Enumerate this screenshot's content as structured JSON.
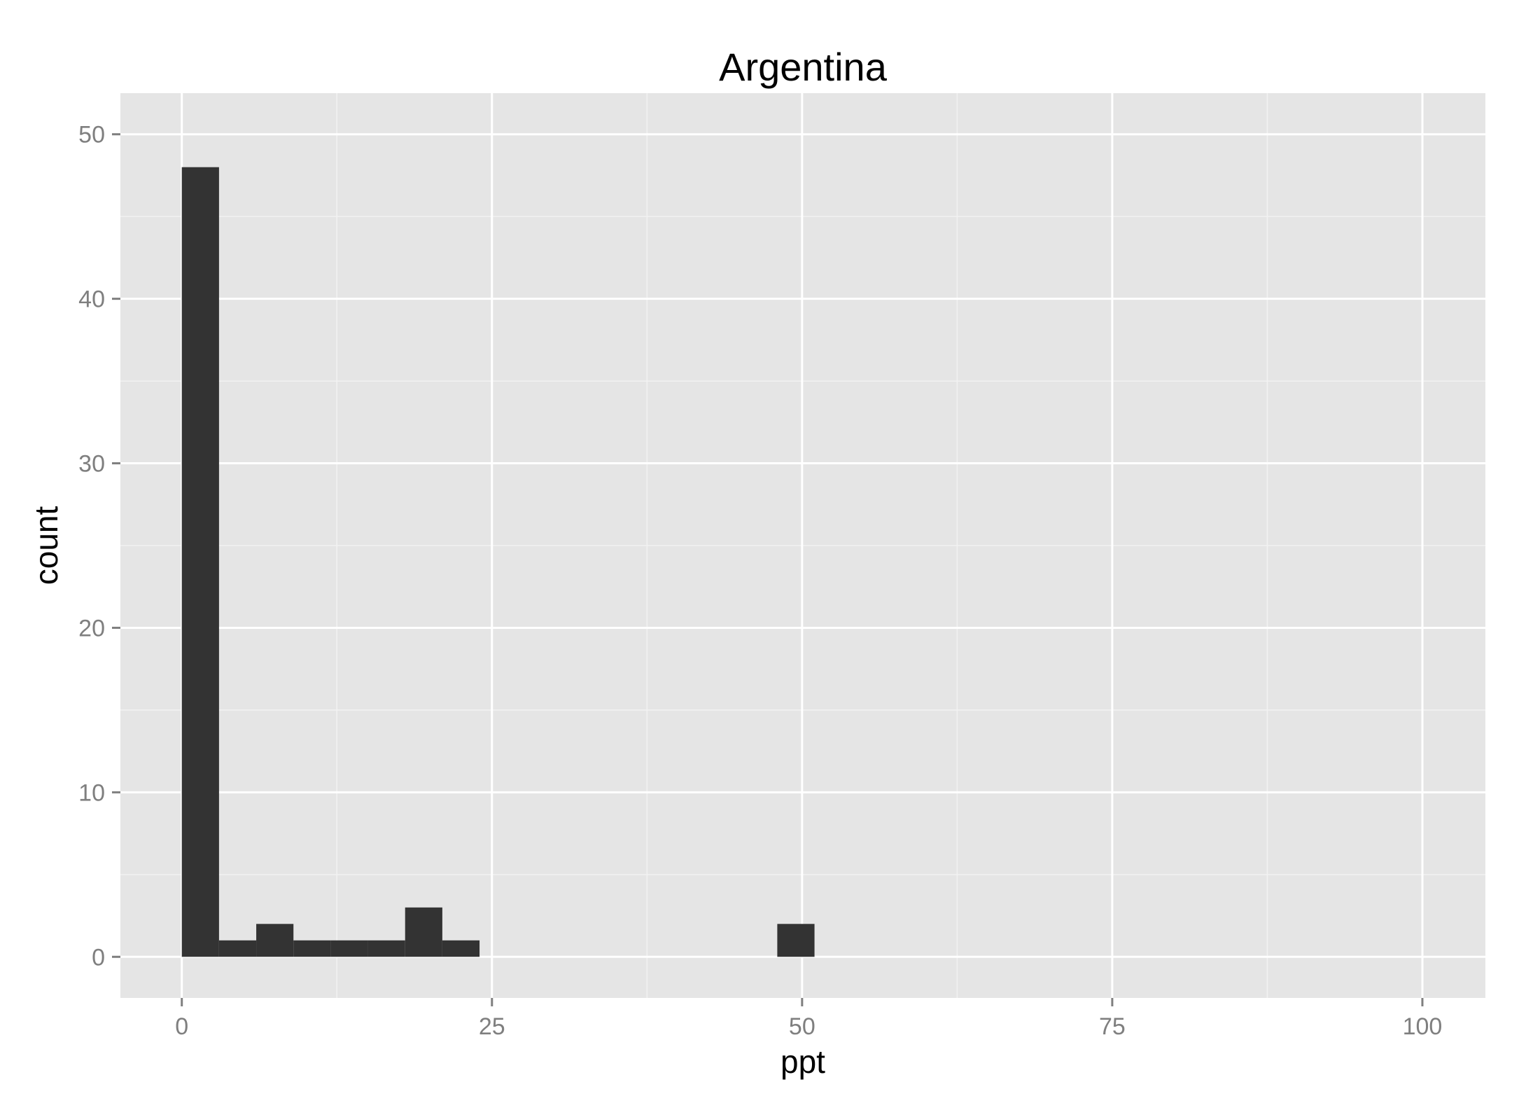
{
  "chart_data": {
    "type": "bar",
    "title": "Argentina",
    "xlabel": "ppt",
    "ylabel": "count",
    "xlim": [
      -4.95,
      105.08
    ],
    "ylim": [
      -2.5,
      52.5
    ],
    "x_ticks": [
      0,
      25,
      50,
      75,
      100
    ],
    "x_tick_labels": [
      "0",
      "25",
      "50",
      "75",
      "100"
    ],
    "y_ticks": [
      0,
      10,
      20,
      30,
      40,
      50
    ],
    "y_tick_labels": [
      "0",
      "10",
      "20",
      "30",
      "40",
      "50"
    ],
    "bin_width": 3,
    "bins": [
      {
        "x0": 0,
        "x1": 3,
        "count": 48
      },
      {
        "x0": 3,
        "x1": 6,
        "count": 1
      },
      {
        "x0": 6,
        "x1": 9,
        "count": 2
      },
      {
        "x0": 9,
        "x1": 12,
        "count": 1
      },
      {
        "x0": 12,
        "x1": 15,
        "count": 1
      },
      {
        "x0": 15,
        "x1": 18,
        "count": 1
      },
      {
        "x0": 18,
        "x1": 21,
        "count": 3
      },
      {
        "x0": 21,
        "x1": 24,
        "count": 1
      },
      {
        "x0": 48,
        "x1": 51,
        "count": 2
      }
    ],
    "grid": true,
    "colors": {
      "panel_background": "#e5e5e5",
      "grid_major": "#ffffff",
      "grid_minor": "#f2f2f2",
      "bar_fill": "#333333",
      "tick_text": "#7f7f7f",
      "tick_mark": "#7f7f7f"
    }
  }
}
